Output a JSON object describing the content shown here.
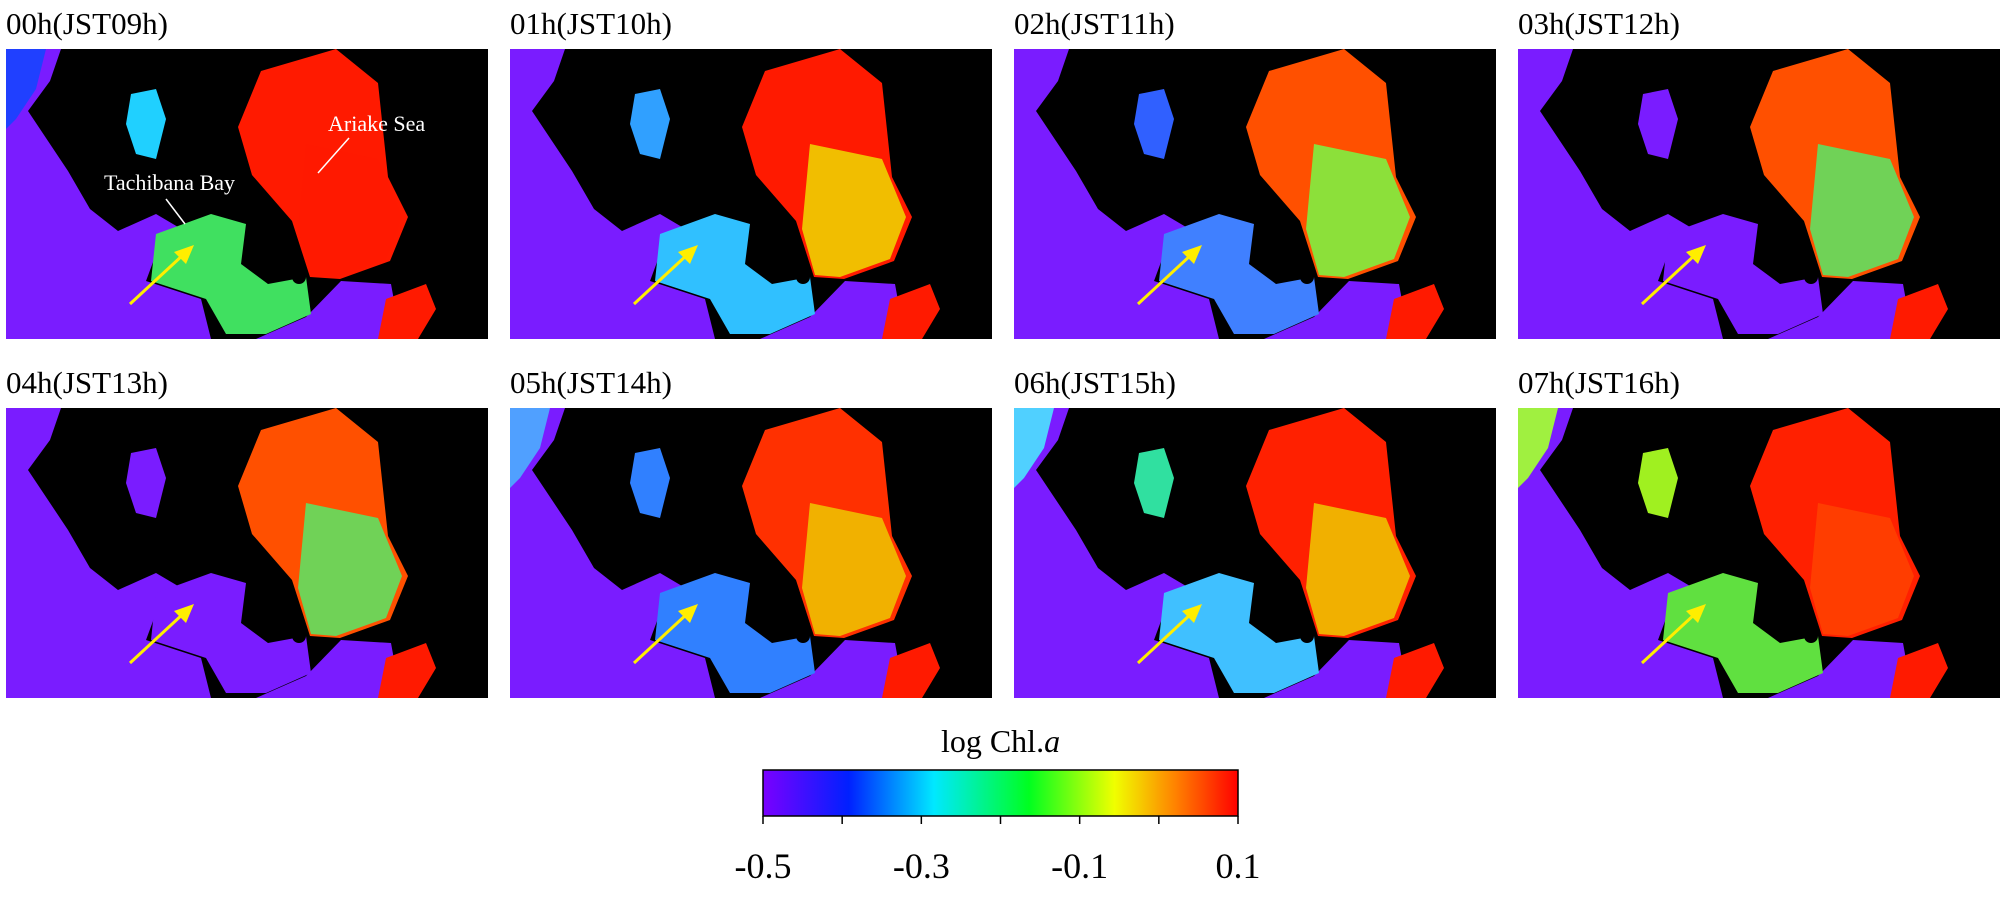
{
  "panels": [
    {
      "title": "00h(JST09h)"
    },
    {
      "title": "01h(JST10h)"
    },
    {
      "title": "02h(JST11h)"
    },
    {
      "title": "03h(JST12h)"
    },
    {
      "title": "04h(JST13h)"
    },
    {
      "title": "05h(JST14h)"
    },
    {
      "title": "06h(JST15h)"
    },
    {
      "title": "07h(JST16h)"
    }
  ],
  "annotations": {
    "ariake": "Ariake Sea",
    "tachibana": "Tachibana Bay"
  },
  "colorbar": {
    "label": "log Chl.",
    "label_italic": "a",
    "range": [
      -0.5,
      0.1
    ],
    "ticks": [
      -0.5,
      -0.3,
      -0.1,
      0.1
    ],
    "minor_ticks": [
      -0.4,
      -0.2,
      0
    ]
  }
}
